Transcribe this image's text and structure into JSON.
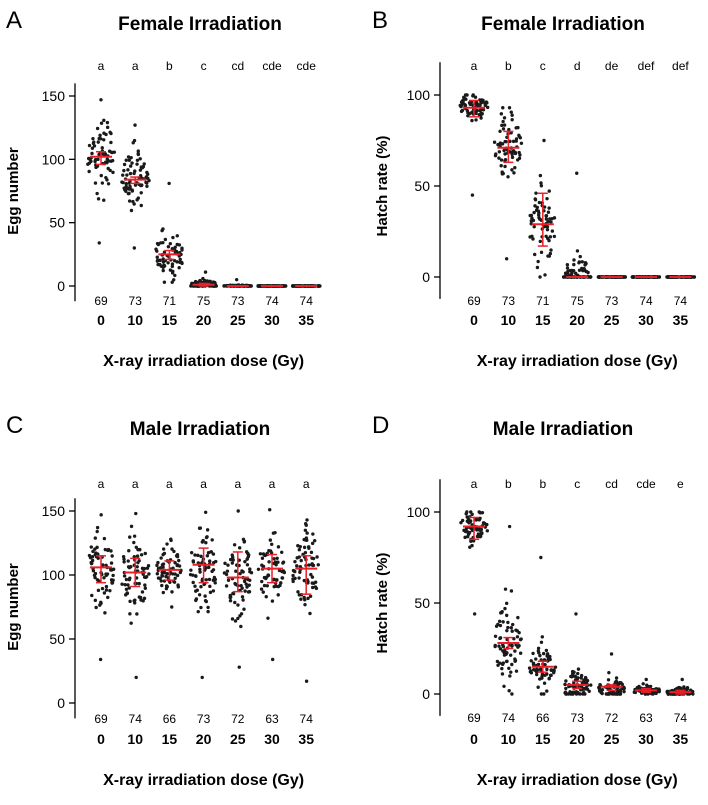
{
  "figure": {
    "x_axis_label": "X-ray irradiation dose (Gy)"
  },
  "colors": {
    "points": "#1a1a1a",
    "summary": "#e8202a",
    "axis": "#000000"
  },
  "chart_data": [
    {
      "panel_letter": "A",
      "title": "Female Irradiation",
      "type": "scatter",
      "subtype": "dot-plot with mean and SEM/SD bars",
      "xlabel": "X-ray irradiation dose (Gy)",
      "ylabel": "Egg number",
      "ylim": [
        -12,
        160
      ],
      "yticks": [
        0,
        50,
        100,
        150
      ],
      "categories": [
        "0",
        "10",
        "15",
        "20",
        "25",
        "30",
        "35"
      ],
      "significance_letters": [
        "a",
        "a",
        "b",
        "c",
        "cd",
        "cde",
        "cde"
      ],
      "n_values": [
        "69",
        "73",
        "71",
        "75",
        "73",
        "74",
        "74"
      ],
      "means": [
        102,
        84,
        25,
        1,
        0,
        0,
        0
      ],
      "error_low": [
        96,
        81,
        21,
        0,
        0,
        0,
        0
      ],
      "error_high": [
        106,
        86,
        28,
        2,
        0,
        0,
        0
      ],
      "spread": [
        {
          "center": 102,
          "sd": 21,
          "min": 34,
          "max": 147
        },
        {
          "center": 84,
          "sd": 16,
          "min": 30,
          "max": 127
        },
        {
          "center": 25,
          "sd": 15,
          "min": 3,
          "max": 81
        },
        {
          "center": 1,
          "sd": 2.5,
          "min": 0,
          "max": 11
        },
        {
          "center": 0,
          "sd": 0.6,
          "min": 0,
          "max": 5
        },
        {
          "center": 0,
          "sd": 0,
          "min": 0,
          "max": 0
        },
        {
          "center": 0,
          "sd": 0,
          "min": 0,
          "max": 0
        }
      ]
    },
    {
      "panel_letter": "B",
      "title": "Female Irradiation",
      "type": "scatter",
      "subtype": "dot-plot with mean and SEM/SD bars",
      "xlabel": "X-ray irradiation dose (Gy)",
      "ylabel": "Hatch rate (%)",
      "ylim": [
        -12,
        118
      ],
      "yticks": [
        0,
        50,
        100
      ],
      "categories": [
        "0",
        "10",
        "15",
        "20",
        "25",
        "30",
        "35"
      ],
      "significance_letters": [
        "a",
        "b",
        "c",
        "d",
        "de",
        "def",
        "def"
      ],
      "n_values": [
        "69",
        "73",
        "71",
        "75",
        "73",
        "74",
        "74"
      ],
      "means": [
        93,
        71,
        29,
        0,
        0,
        0,
        0
      ],
      "error_low": [
        88,
        63,
        17,
        0,
        0,
        0,
        0
      ],
      "error_high": [
        97,
        80,
        46,
        0,
        0,
        0,
        0
      ],
      "spread": [
        {
          "center": 94,
          "sd": 6,
          "min": 45,
          "max": 100
        },
        {
          "center": 72,
          "sd": 14,
          "min": 10,
          "max": 93
        },
        {
          "center": 28,
          "sd": 15,
          "min": 0,
          "max": 75
        },
        {
          "center": 0,
          "sd": 8,
          "min": 0,
          "max": 57
        },
        {
          "center": 0,
          "sd": 0,
          "min": 0,
          "max": 0
        },
        {
          "center": 0,
          "sd": 0,
          "min": 0,
          "max": 0
        },
        {
          "center": 0,
          "sd": 0,
          "min": 0,
          "max": 0
        }
      ]
    },
    {
      "panel_letter": "C",
      "title": "Male Irradiation",
      "type": "scatter",
      "subtype": "dot-plot with mean and SEM/SD bars",
      "xlabel": "X-ray irradiation dose (Gy)",
      "ylabel": "Egg number",
      "ylim": [
        -12,
        160
      ],
      "yticks": [
        0,
        50,
        100,
        150
      ],
      "categories": [
        "0",
        "10",
        "15",
        "20",
        "25",
        "30",
        "35"
      ],
      "significance_letters": [
        "a",
        "a",
        "a",
        "a",
        "a",
        "a",
        "a"
      ],
      "n_values": [
        "69",
        "74",
        "66",
        "73",
        "72",
        "63",
        "74"
      ],
      "means": [
        106,
        102,
        104,
        108,
        98,
        105,
        105
      ],
      "error_low": [
        94,
        91,
        96,
        94,
        87,
        94,
        85
      ],
      "error_high": [
        115,
        113,
        111,
        121,
        118,
        116,
        115
      ],
      "spread": [
        {
          "center": 104,
          "sd": 20,
          "min": 34,
          "max": 147
        },
        {
          "center": 101,
          "sd": 22,
          "min": 20,
          "max": 148
        },
        {
          "center": 104,
          "sd": 13,
          "min": 75,
          "max": 128
        },
        {
          "center": 106,
          "sd": 24,
          "min": 20,
          "max": 149
        },
        {
          "center": 99,
          "sd": 22,
          "min": 28,
          "max": 150
        },
        {
          "center": 104,
          "sd": 21,
          "min": 34,
          "max": 151
        },
        {
          "center": 103,
          "sd": 22,
          "min": 17,
          "max": 143
        }
      ]
    },
    {
      "panel_letter": "D",
      "title": "Male Irradiation",
      "type": "scatter",
      "subtype": "dot-plot with mean and SEM/SD bars",
      "xlabel": "X-ray irradiation dose (Gy)",
      "ylabel": "Hatch rate (%)",
      "ylim": [
        -12,
        118
      ],
      "yticks": [
        0,
        50,
        100
      ],
      "categories": [
        "0",
        "10",
        "15",
        "20",
        "25",
        "30",
        "35"
      ],
      "significance_letters": [
        "a",
        "b",
        "b",
        "c",
        "cd",
        "cde",
        "e"
      ],
      "n_values": [
        "69",
        "74",
        "66",
        "73",
        "72",
        "63",
        "74"
      ],
      "means": [
        92,
        28,
        15,
        5,
        4,
        2,
        1
      ],
      "error_low": [
        85,
        25,
        12,
        3,
        2,
        1,
        0
      ],
      "error_high": [
        97,
        31,
        18,
        7,
        5,
        3,
        2
      ],
      "spread": [
        {
          "center": 92,
          "sd": 7,
          "min": 44,
          "max": 100
        },
        {
          "center": 28,
          "sd": 15,
          "min": 0,
          "max": 92
        },
        {
          "center": 15,
          "sd": 8,
          "min": 0,
          "max": 75
        },
        {
          "center": 4,
          "sd": 6,
          "min": 0,
          "max": 44
        },
        {
          "center": 3,
          "sd": 4,
          "min": 0,
          "max": 22
        },
        {
          "center": 2,
          "sd": 2,
          "min": 0,
          "max": 8
        },
        {
          "center": 1,
          "sd": 2,
          "min": 0,
          "max": 8
        }
      ]
    }
  ]
}
